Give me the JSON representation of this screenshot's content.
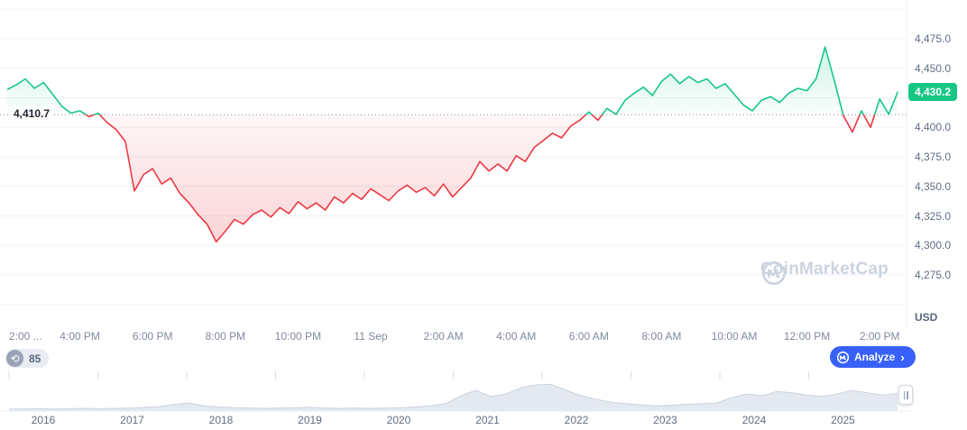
{
  "chart_data": [
    {
      "type": "line",
      "title": "",
      "x_start_label": "2:00 PM",
      "x_interval_minutes": 15,
      "x_tick_labels": [
        "2:00 ...",
        "4:00 PM",
        "6:00 PM",
        "8:00 PM",
        "10:00 PM",
        "11 Sep",
        "2:00 AM",
        "4:00 AM",
        "6:00 AM",
        "8:00 AM",
        "10:00 AM",
        "12:00 PM",
        "2:00 PM"
      ],
      "values": [
        4432,
        4436,
        4441,
        4433,
        4438,
        4428,
        4418,
        4412,
        4414,
        4409,
        4412,
        4404,
        4398,
        4388,
        4346,
        4360,
        4365,
        4352,
        4357,
        4344,
        4336,
        4326,
        4318,
        4303,
        4312,
        4322,
        4318,
        4326,
        4330,
        4324,
        4332,
        4327,
        4337,
        4331,
        4336,
        4330,
        4341,
        4336,
        4344,
        4339,
        4348,
        4343,
        4338,
        4346,
        4351,
        4345,
        4349,
        4342,
        4352,
        4341,
        4349,
        4357,
        4371,
        4363,
        4369,
        4363,
        4376,
        4371,
        4383,
        4389,
        4395,
        4391,
        4401,
        4406,
        4413,
        4406,
        4416,
        4411,
        4423,
        4429,
        4434,
        4427,
        4439,
        4445,
        4437,
        4443,
        4438,
        4441,
        4433,
        4437,
        4428,
        4419,
        4414,
        4423,
        4426,
        4421,
        4429,
        4433,
        4431,
        4441,
        4468,
        4440,
        4410,
        4396,
        4414,
        4400,
        4424,
        4411,
        4430.2
      ],
      "baseline": {
        "value": 4410.7,
        "label": "4,410.7"
      },
      "current": {
        "value": 4430.2,
        "label": "4,430.2"
      },
      "ylim": [
        4250,
        4500
      ],
      "y_axis": {
        "unit": "USD",
        "ticks": [
          {
            "value": 4475,
            "label": "4,475.0"
          },
          {
            "value": 4450,
            "label": "4,450.0"
          },
          {
            "value": 4400,
            "label": "4,400.0"
          },
          {
            "value": 4375,
            "label": "4,375.0"
          },
          {
            "value": 4350,
            "label": "4,350.0"
          },
          {
            "value": 4325,
            "label": "4,325.0"
          },
          {
            "value": 4300,
            "label": "4,300.0"
          },
          {
            "value": 4275,
            "label": "4,275.0"
          }
        ],
        "grid": [
          4250,
          4275,
          4300,
          4325,
          4350,
          4375,
          4400,
          4425,
          4450,
          4475,
          4500
        ]
      },
      "grid_on": true,
      "colors": {
        "up": "#16c784",
        "down": "#ea3943",
        "grid": "#eff2f5",
        "baseline": "#878e9f"
      }
    },
    {
      "type": "area",
      "title": "range navigator (all-time history)",
      "x_tick_labels": [
        "2016",
        "2017",
        "2018",
        "2019",
        "2020",
        "2021",
        "2022",
        "2023",
        "2024",
        "2025"
      ],
      "values": [
        0.03,
        0.03,
        0.04,
        0.03,
        0.04,
        0.05,
        0.04,
        0.05,
        0.06,
        0.08,
        0.1,
        0.16,
        0.2,
        0.12,
        0.09,
        0.07,
        0.06,
        0.05,
        0.06,
        0.07,
        0.08,
        0.06,
        0.05,
        0.06,
        0.05,
        0.06,
        0.07,
        0.09,
        0.12,
        0.18,
        0.4,
        0.55,
        0.38,
        0.45,
        0.62,
        0.7,
        0.72,
        0.55,
        0.4,
        0.3,
        0.22,
        0.18,
        0.15,
        0.12,
        0.14,
        0.16,
        0.18,
        0.2,
        0.35,
        0.45,
        0.4,
        0.52,
        0.48,
        0.42,
        0.38,
        0.45,
        0.55,
        0.48,
        0.42,
        0.46
      ],
      "ylim": [
        0,
        1
      ],
      "colors": {
        "fill": "#e4e8f0",
        "line": "#ccd3df"
      }
    }
  ],
  "controls": {
    "history_count": "85",
    "analyze_label": "Analyze",
    "chevron": "›",
    "history_icon": "clock-history-icon",
    "drag_handle_icon": "grip-vertical-icon"
  },
  "watermark": {
    "text": "CoinMarketCap",
    "icon": "coinmarketcap-logo-icon"
  }
}
